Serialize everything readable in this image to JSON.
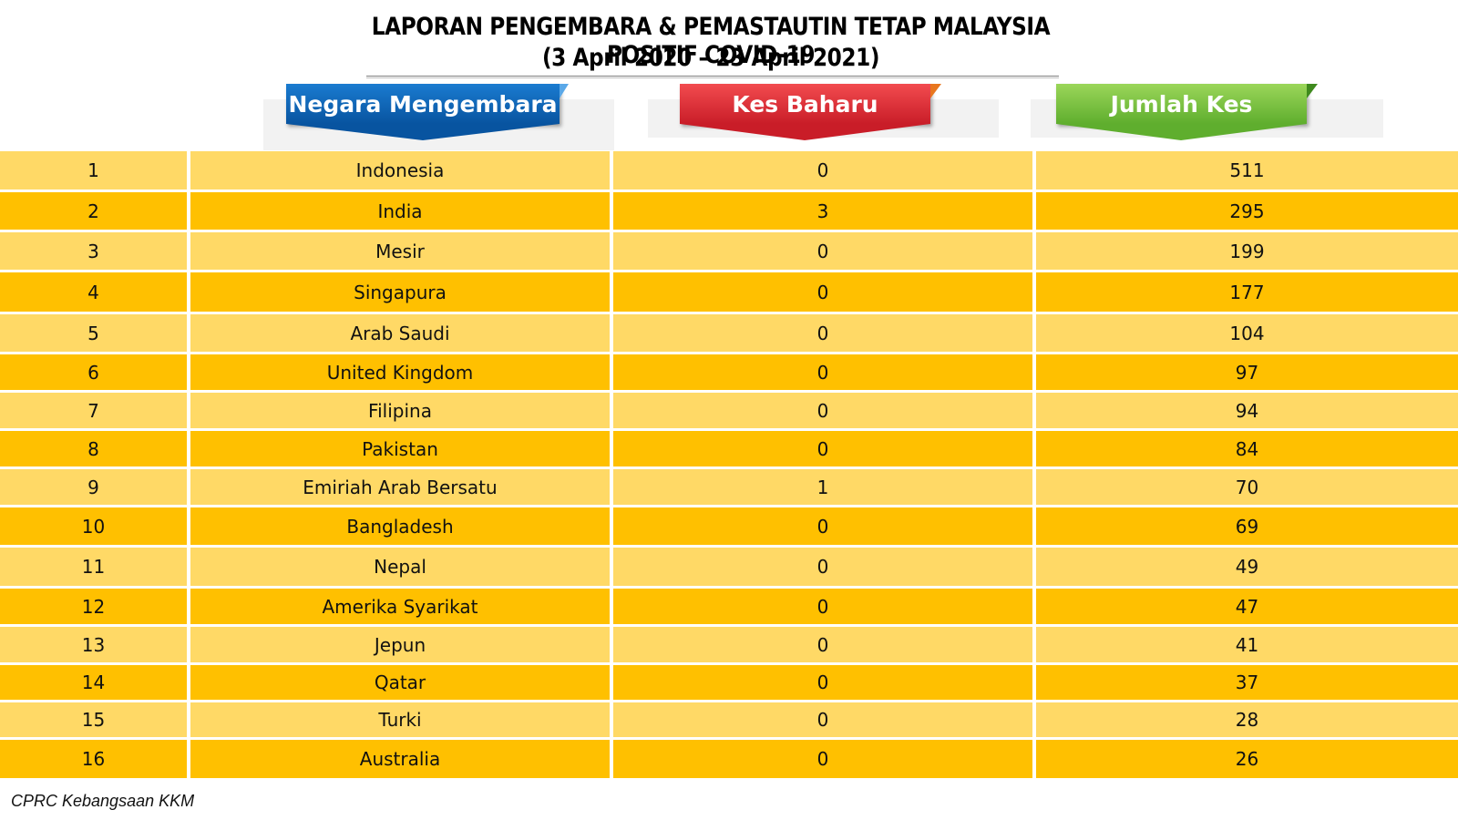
{
  "title_line1": "LAPORAN PENGEMBARA & PEMASTAUTIN TETAP MALAYSIA POSITIF COVID-19",
  "title_line2": "(3 April 2020 – 23 April 2021)",
  "headers": {
    "country": "Negara Mengembara",
    "new_cases": "Kes Baharu",
    "total_cases": "Jumlah Kes"
  },
  "colors": {
    "header_country": "#0b63b3",
    "header_new": "#e0303a",
    "header_total": "#7bc142",
    "row_light": "#ffd966",
    "row_dark": "#ffc000"
  },
  "rows": [
    {
      "no": "1",
      "country": "Indonesia",
      "new": "0",
      "total": "511"
    },
    {
      "no": "2",
      "country": "India",
      "new": "3",
      "total": "295"
    },
    {
      "no": "3",
      "country": "Mesir",
      "new": "0",
      "total": "199"
    },
    {
      "no": "4",
      "country": "Singapura",
      "new": "0",
      "total": "177"
    },
    {
      "no": "5",
      "country": "Arab Saudi",
      "new": "0",
      "total": "104"
    },
    {
      "no": "6",
      "country": "United Kingdom",
      "new": "0",
      "total": "97"
    },
    {
      "no": "7",
      "country": "Filipina",
      "new": "0",
      "total": "94"
    },
    {
      "no": "8",
      "country": "Pakistan",
      "new": "0",
      "total": "84"
    },
    {
      "no": "9",
      "country": "Emiriah Arab Bersatu",
      "new": "1",
      "total": "70"
    },
    {
      "no": "10",
      "country": "Bangladesh",
      "new": "0",
      "total": "69"
    },
    {
      "no": "11",
      "country": "Nepal",
      "new": "0",
      "total": "49"
    },
    {
      "no": "12",
      "country": "Amerika Syarikat",
      "new": "0",
      "total": "47"
    },
    {
      "no": "13",
      "country": "Jepun",
      "new": "0",
      "total": "41"
    },
    {
      "no": "14",
      "country": "Qatar",
      "new": "0",
      "total": "37"
    },
    {
      "no": "15",
      "country": "Turki",
      "new": "0",
      "total": "28"
    },
    {
      "no": "16",
      "country": "Australia",
      "new": "0",
      "total": "26"
    }
  ],
  "footer": "CPRC Kebangsaan KKM"
}
